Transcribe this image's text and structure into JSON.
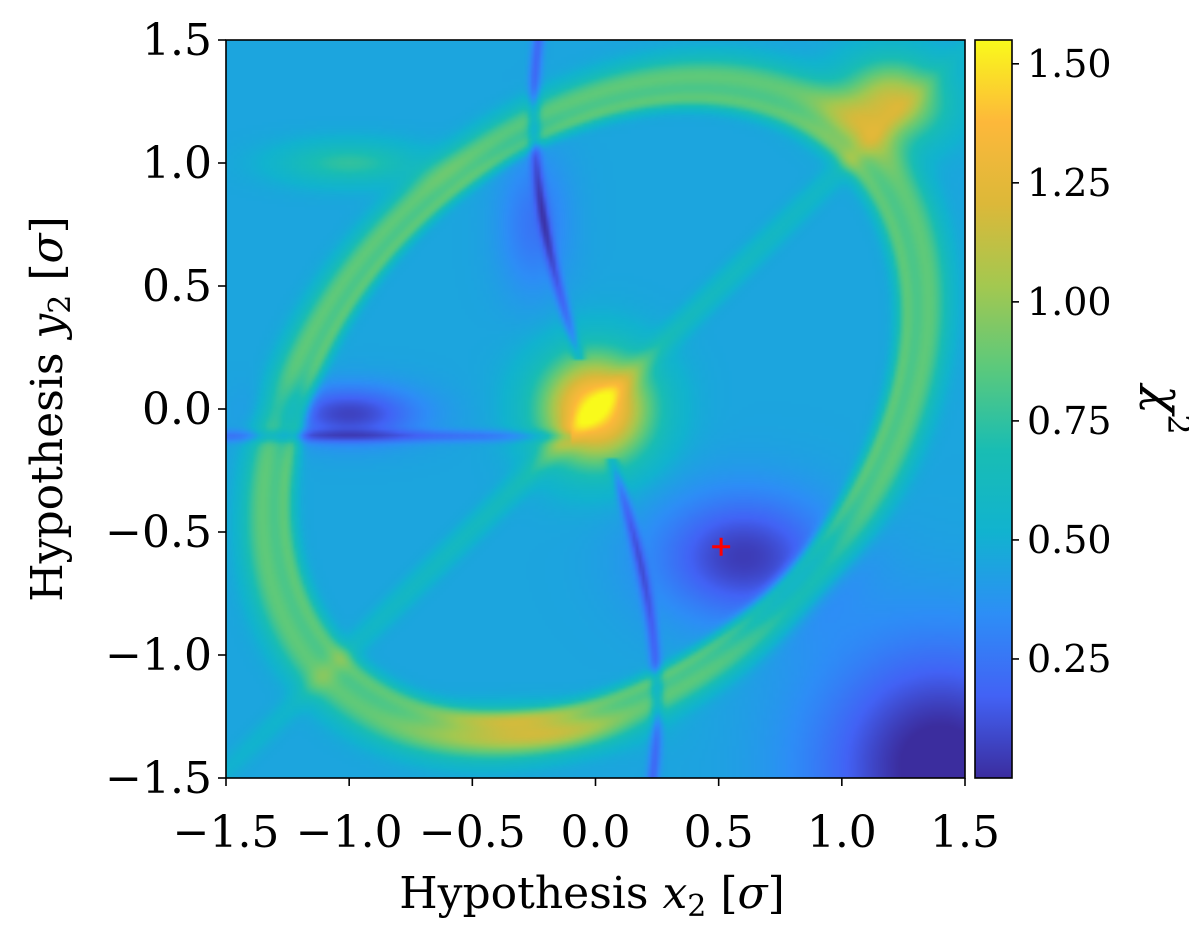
{
  "chart_data": {
    "type": "heatmap",
    "title": "",
    "xlabel": {
      "prefix": "Hypothesis ",
      "var": "x",
      "sub": "2",
      "unit_var": "σ"
    },
    "ylabel": {
      "prefix": "Hypothesis ",
      "var": "y",
      "sub": "2",
      "unit_var": "σ"
    },
    "xlim": [
      -1.5,
      1.5
    ],
    "ylim": [
      -1.5,
      1.5
    ],
    "x_ticks": [
      -1.5,
      -1.0,
      -0.5,
      0.0,
      0.5,
      1.0,
      1.5
    ],
    "y_ticks": [
      -1.5,
      -1.0,
      -0.5,
      0.0,
      0.5,
      1.0,
      1.5
    ],
    "x_tick_labels": [
      "−1.5",
      "−1.0",
      "−0.5",
      "0.0",
      "0.5",
      "1.0",
      "1.5"
    ],
    "y_tick_labels": [
      "−1.5",
      "−1.0",
      "−0.5",
      "0.0",
      "0.5",
      "1.0",
      "1.5"
    ],
    "colorbar": {
      "label": "χ",
      "label_sup": "2",
      "range": [
        0.0,
        1.55
      ],
      "ticks": [
        0.25,
        0.5,
        0.75,
        1.0,
        1.25,
        1.5
      ],
      "tick_labels": [
        "0.25",
        "0.50",
        "0.75",
        "1.00",
        "1.25",
        "1.50"
      ]
    },
    "colormap": [
      "#3b2d9e",
      "#4262f5",
      "#2d8ef6",
      "#11b3cf",
      "#19bdb3",
      "#5bc97c",
      "#a3c850",
      "#dcb839",
      "#fdb83a",
      "#f9fa1b"
    ],
    "features": {
      "central_peak": {
        "x": 0.0,
        "y": 0.0,
        "value": 1.5
      },
      "ring": {
        "center": [
          0.0,
          0.0
        ],
        "orientation": "diagonal",
        "value": 1.1
      },
      "lower_right_basin": {
        "x": 1.3,
        "y": -1.4,
        "value": 0.05
      },
      "diagonal_ridge_value": 0.8
    },
    "marker": {
      "x": 0.51,
      "y": -0.56,
      "symbol": "+",
      "color": "#ff0000"
    },
    "grid": false,
    "legend": "none"
  }
}
